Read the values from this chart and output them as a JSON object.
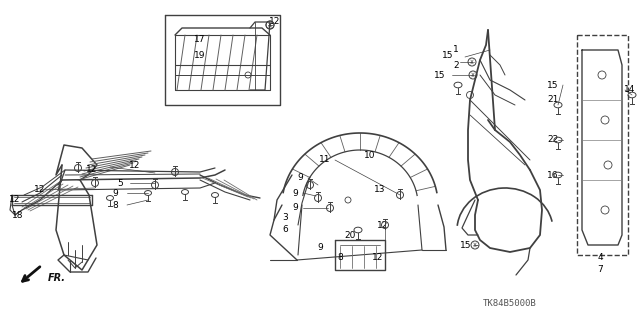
{
  "diagram_code": "TK84B5000B",
  "background_color": "#ffffff",
  "line_color": "#404040",
  "text_color": "#000000",
  "fig_width": 6.4,
  "fig_height": 3.19,
  "dpi": 100
}
